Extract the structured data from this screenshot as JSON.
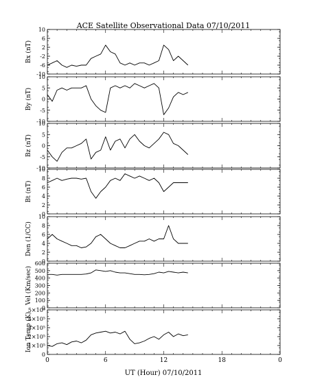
{
  "title": "ACE Satellite Observational Data   07/10/2011",
  "xlabel": "UT (Hour)   07/10/2011",
  "x_ticks": [
    "0",
    "6",
    "12",
    "18",
    "0"
  ],
  "chart_data": [
    {
      "type": "line",
      "ylabel": "Bx (nT)",
      "ylim": [
        -10,
        10
      ],
      "y_ticks": [
        "10",
        "6",
        "2",
        "-2",
        "-6",
        "-10"
      ],
      "x": [
        0,
        0.5,
        1,
        1.5,
        2,
        2.5,
        3,
        3.5,
        4,
        4.5,
        5,
        5.5,
        6,
        6.5,
        7,
        7.5,
        8,
        8.5,
        9,
        9.5,
        10,
        10.5,
        11,
        11.5,
        12,
        12.5,
        13,
        13.5,
        14,
        14.5
      ],
      "y": [
        -6,
        -5,
        -4,
        -6,
        -7,
        -6,
        -6.5,
        -6,
        -6,
        -3,
        -2,
        -1,
        3,
        0,
        -1,
        -5,
        -6,
        -5,
        -6,
        -5,
        -5,
        -6,
        -5,
        -4,
        3,
        1,
        -4,
        -2,
        -4,
        -6
      ]
    },
    {
      "type": "line",
      "ylabel": "By (nT)",
      "ylim": [
        -10,
        10
      ],
      "y_ticks": [
        "10",
        "5",
        "0",
        "-5",
        "-10"
      ],
      "x": [
        0,
        0.5,
        1,
        1.5,
        2,
        2.5,
        3,
        3.5,
        4,
        4.5,
        5,
        5.5,
        6,
        6.5,
        7,
        7.5,
        8,
        8.5,
        9,
        9.5,
        10,
        10.5,
        11,
        11.5,
        12,
        12.5,
        13,
        13.5,
        14,
        14.5
      ],
      "y": [
        2,
        -1,
        4,
        5,
        4,
        5,
        5,
        5,
        6,
        0,
        -3,
        -5,
        -6,
        5,
        6,
        5,
        6,
        5,
        7,
        6,
        5,
        6,
        7,
        5,
        -7,
        -4,
        1,
        3,
        2,
        3
      ]
    },
    {
      "type": "line",
      "ylabel": "Bz (nT)",
      "ylim": [
        -10,
        10
      ],
      "y_ticks": [
        "10",
        "5",
        "0",
        "-5",
        "-10"
      ],
      "x": [
        0,
        0.5,
        1,
        1.5,
        2,
        2.5,
        3,
        3.5,
        4,
        4.5,
        5,
        5.5,
        6,
        6.5,
        7,
        7.5,
        8,
        8.5,
        9,
        9.5,
        10,
        10.5,
        11,
        11.5,
        12,
        12.5,
        13,
        13.5,
        14,
        14.5
      ],
      "y": [
        -2,
        -5,
        -7,
        -3,
        -1,
        -1,
        0,
        1,
        3,
        -6,
        -3,
        -2,
        4,
        -2,
        2,
        3,
        -1,
        3,
        5,
        2,
        0,
        -1,
        1,
        3,
        6,
        5,
        1,
        0,
        -2,
        -4
      ]
    },
    {
      "type": "line",
      "ylabel": "Bt (nT)",
      "ylim": [
        0,
        10
      ],
      "y_ticks": [
        "10",
        "8",
        "6",
        "4",
        "2",
        "0"
      ],
      "x": [
        0,
        0.5,
        1,
        1.5,
        2,
        2.5,
        3,
        3.5,
        4,
        4.5,
        5,
        5.5,
        6,
        6.5,
        7,
        7.5,
        8,
        8.5,
        9,
        9.5,
        10,
        10.5,
        11,
        11.5,
        12,
        12.5,
        13,
        13.5,
        14,
        14.5
      ],
      "y": [
        7,
        7.5,
        8,
        7.5,
        7.8,
        8,
        8,
        7.8,
        8,
        5,
        3.5,
        5,
        6,
        7.5,
        8,
        7.5,
        9,
        8.5,
        8,
        8.5,
        8,
        7.5,
        8,
        7,
        5,
        6,
        7,
        7,
        7,
        7
      ]
    },
    {
      "type": "line",
      "ylabel": "Den (1/CC)",
      "ylim": [
        0,
        10
      ],
      "y_ticks": [
        "10",
        "8",
        "6",
        "4",
        "2",
        "0"
      ],
      "x": [
        0,
        0.5,
        1,
        1.5,
        2,
        2.5,
        3,
        3.5,
        4,
        4.5,
        5,
        5.5,
        6,
        6.5,
        7,
        7.5,
        8,
        8.5,
        9,
        9.5,
        10,
        10.5,
        11,
        11.5,
        12,
        12.5,
        13,
        13.5,
        14,
        14.5
      ],
      "y": [
        5,
        6,
        5,
        4.5,
        4,
        3.5,
        3.5,
        3,
        3.2,
        4,
        5.5,
        6,
        5,
        4,
        3.5,
        3,
        3,
        3.5,
        4,
        4.5,
        4.5,
        5,
        4.5,
        5,
        5,
        8,
        5,
        4,
        4,
        4
      ]
    },
    {
      "type": "line",
      "ylabel": "Vel (Km/sec)",
      "ylim": [
        0,
        600
      ],
      "y_ticks": [
        "600",
        "500",
        "400",
        "300",
        "200",
        "100",
        "0"
      ],
      "x": [
        0,
        0.5,
        1,
        1.5,
        2,
        2.5,
        3,
        3.5,
        4,
        4.5,
        5,
        5.5,
        6,
        6.5,
        7,
        7.5,
        8,
        8.5,
        9,
        9.5,
        10,
        10.5,
        11,
        11.5,
        12,
        12.5,
        13,
        13.5,
        14,
        14.5
      ],
      "y": [
        450,
        450,
        440,
        450,
        450,
        450,
        450,
        450,
        455,
        470,
        510,
        500,
        490,
        500,
        480,
        470,
        470,
        460,
        450,
        450,
        445,
        450,
        460,
        480,
        470,
        490,
        480,
        470,
        480,
        470
      ]
    },
    {
      "type": "line",
      "ylabel": "Ion Temp (K)",
      "ylim": [
        0,
        500000
      ],
      "y_ticks": [
        "5×10⁵",
        "4×10⁵",
        "3×10⁵",
        "2×10⁵",
        "1×10⁵",
        "0"
      ],
      "x": [
        0,
        0.5,
        1,
        1.5,
        2,
        2.5,
        3,
        3.5,
        4,
        4.5,
        5,
        5.5,
        6,
        6.5,
        7,
        7.5,
        8,
        8.5,
        9,
        9.5,
        10,
        10.5,
        11,
        11.5,
        12,
        12.5,
        13,
        13.5,
        14,
        14.5
      ],
      "y": [
        100000,
        90000,
        120000,
        130000,
        110000,
        140000,
        150000,
        130000,
        160000,
        220000,
        240000,
        250000,
        260000,
        240000,
        250000,
        230000,
        260000,
        170000,
        120000,
        130000,
        150000,
        180000,
        200000,
        170000,
        220000,
        250000,
        200000,
        230000,
        210000,
        220000
      ]
    }
  ]
}
